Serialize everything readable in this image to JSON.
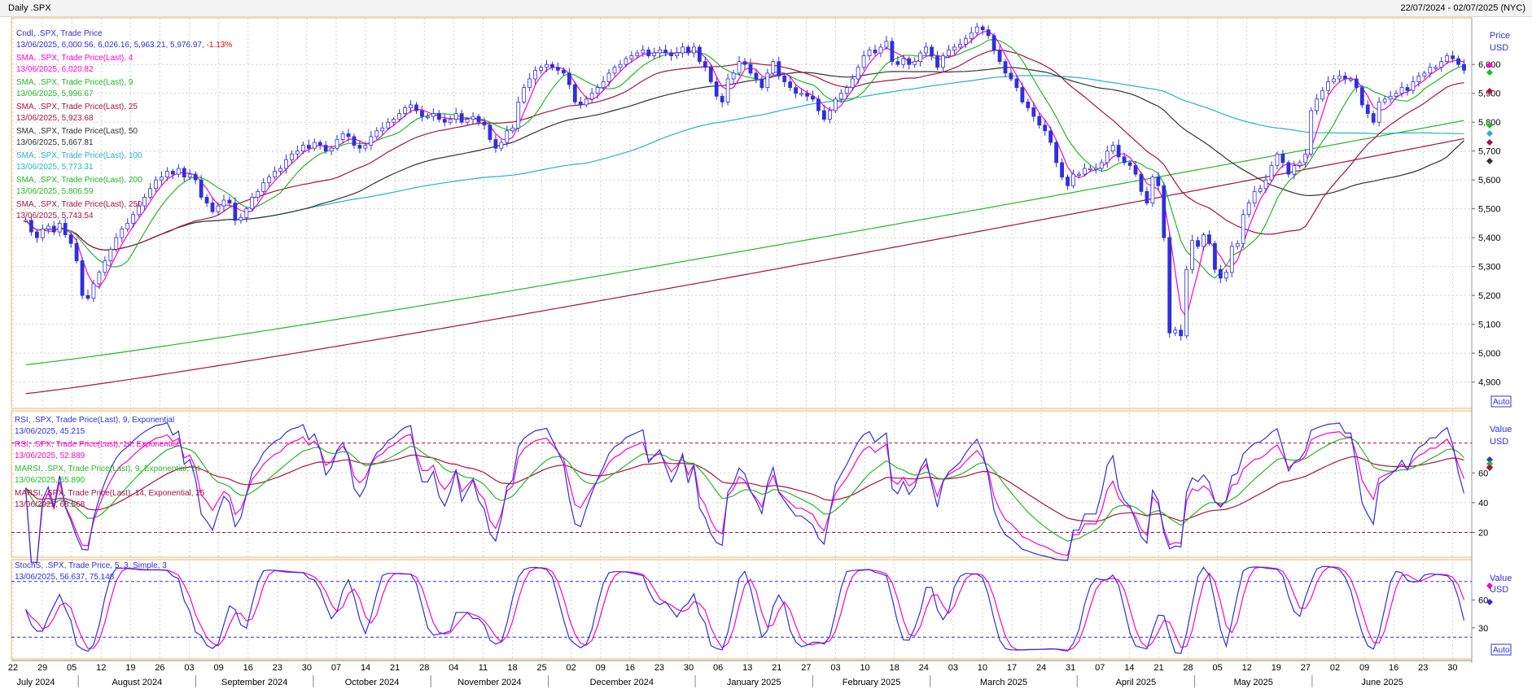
{
  "window": {
    "title": "Daily .SPX",
    "date_range": "22/07/2024 - 02/07/2025 (NYC)"
  },
  "chart_data": [
    {
      "type": "candlestick",
      "panel": "price",
      "legend": [
        {
          "label": "Cndl, .SPX, Trade Price",
          "value": "13/06/2025, 6,000.56, 6,026.16, 5,963.21, 5,976.97, ",
          "change": "-1.13%",
          "color": "#2f2fe0"
        },
        {
          "label": "SMA, .SPX, Trade Price(Last),  4",
          "value": "13/06/2025, 6,020.82",
          "color": "#ff00cc"
        },
        {
          "label": "SMA, .SPX, Trade Price(Last),  9",
          "value": "13/06/2025, 5,996.67",
          "color": "#22bb22"
        },
        {
          "label": "SMA, .SPX, Trade Price(Last),  25",
          "value": "13/06/2025, 5,923.68",
          "color": "#aa1144"
        },
        {
          "label": "SMA, .SPX, Trade Price(Last),  50",
          "value": "13/06/2025, 5,667.81",
          "color": "#333333"
        },
        {
          "label": "SMA, .SPX, Trade Price(Last),  100",
          "value": "13/06/2025, 5,773.31",
          "color": "#22b5c8"
        },
        {
          "label": "SMA, .SPX, Trade Price(Last),  200",
          "value": "13/06/2025, 5,806.59",
          "color": "#22bb22"
        },
        {
          "label": "SMA, .SPX, Trade Price(Last),  250",
          "value": "13/06/2025, 5,743.54",
          "color": "#aa1144"
        }
      ],
      "axis_label": "Price",
      "axis_unit": "USD",
      "yticks": [
        6000,
        5900,
        5800,
        5700,
        5600,
        5500,
        5400,
        5300,
        5200,
        5100,
        5000,
        4900
      ],
      "ytick_labels": [
        "6,000",
        "5,900",
        "5,800",
        "5,700",
        "5,600",
        "5,500",
        "5,400",
        "5,300",
        "5,200",
        "5,100",
        "5,000",
        "4,900"
      ],
      "ylim": [
        4820,
        6150
      ],
      "auto_label": "Auto",
      "closes": [
        5460,
        5420,
        5400,
        5430,
        5440,
        5420,
        5450,
        5410,
        5380,
        5320,
        5200,
        5190,
        5240,
        5280,
        5320,
        5360,
        5400,
        5430,
        5450,
        5480,
        5510,
        5540,
        5570,
        5600,
        5610,
        5630,
        5620,
        5640,
        5610,
        5620,
        5600,
        5540,
        5520,
        5490,
        5510,
        5530,
        5520,
        5460,
        5470,
        5500,
        5540,
        5560,
        5590,
        5610,
        5630,
        5640,
        5670,
        5690,
        5700,
        5720,
        5710,
        5730,
        5720,
        5700,
        5710,
        5740,
        5760,
        5750,
        5720,
        5710,
        5720,
        5750,
        5770,
        5780,
        5800,
        5810,
        5830,
        5850,
        5860,
        5840,
        5820,
        5820,
        5830,
        5810,
        5800,
        5810,
        5830,
        5800,
        5810,
        5820,
        5800,
        5790,
        5740,
        5710,
        5730,
        5770,
        5780,
        5870,
        5920,
        5950,
        5980,
        5990,
        6000,
        5990,
        5980,
        5970,
        5930,
        5870,
        5860,
        5880,
        5900,
        5920,
        5940,
        5970,
        5990,
        6000,
        6020,
        6030,
        6040,
        6050,
        6030,
        6040,
        6050,
        6040,
        6030,
        6040,
        6060,
        6040,
        6060,
        6010,
        5990,
        5940,
        5890,
        5870,
        5950,
        5970,
        6010,
        6000,
        5970,
        5950,
        5920,
        5970,
        6010,
        5960,
        5940,
        5920,
        5900,
        5900,
        5890,
        5880,
        5840,
        5810,
        5840,
        5880,
        5900,
        5920,
        5950,
        5990,
        6030,
        6050,
        6040,
        6060,
        6080,
        6010,
        6000,
        6020,
        6000,
        6010,
        6040,
        6060,
        6030,
        5990,
        6030,
        6050,
        6060,
        6070,
        6090,
        6110,
        6130,
        6120,
        6100,
        6050,
        6010,
        5970,
        5950,
        5920,
        5870,
        5850,
        5820,
        5790,
        5770,
        5730,
        5660,
        5610,
        5580,
        5620,
        5620,
        5640,
        5640,
        5640,
        5660,
        5700,
        5720,
        5680,
        5660,
        5650,
        5620,
        5560,
        5520,
        5610,
        5580,
        5400,
        5070,
        5080,
        5060,
        5290,
        5390,
        5370,
        5410,
        5380,
        5290,
        5260,
        5280,
        5370,
        5380,
        5480,
        5520,
        5560,
        5570,
        5600,
        5650,
        5690,
        5660,
        5620,
        5650,
        5660,
        5690,
        5840,
        5880,
        5910,
        5940,
        5950,
        5960,
        5950,
        5950,
        5920,
        5860,
        5830,
        5800,
        5870,
        5880,
        5890,
        5900,
        5920,
        5910,
        5940,
        5960,
        5970,
        5990,
        5990,
        6010,
        6030,
        6020,
        6000,
        5980
      ]
    },
    {
      "type": "line",
      "panel": "rsi",
      "legend": [
        {
          "label": "RSI, .SPX, Trade Price(Last),  9, Exponential",
          "value": "13/06/2025, 45.215",
          "color": "#2f2fe0"
        },
        {
          "label": "RSI, .SPX, Trade Price(Last),  14, Exponential",
          "value": "13/06/2025, 52.889",
          "color": "#ff00cc"
        },
        {
          "label": "MARSI, .SPX, Trade Price(Last),  9, Exponential, 14",
          "value": "13/06/2025, 65.890",
          "color": "#22bb22"
        },
        {
          "label": "MARSI, .SPX, Trade Price(Last),  14, Exponential, 25",
          "value": "13/06/2025, 68.568",
          "color": "#aa1144"
        }
      ],
      "axis_label": "Value",
      "axis_unit": "USD",
      "yticks": [
        60,
        40,
        20
      ],
      "ytick_labels": [
        "60",
        "40",
        "20"
      ],
      "ylim": [
        5,
        100
      ],
      "levels": [
        80,
        20
      ]
    },
    {
      "type": "line",
      "panel": "stochastic",
      "legend": [
        {
          "label": "StochS, .SPX, Trade Price,  5, 3, Simple, 3",
          "value": "13/06/2025, 56.637, 75.148",
          "color": "#2f2fe0"
        }
      ],
      "axis_label": "Value",
      "axis_unit": "USD",
      "yticks": [
        60,
        30
      ],
      "ytick_labels": [
        "60",
        "30"
      ],
      "ylim": [
        0,
        100
      ],
      "levels": [
        80,
        20
      ],
      "auto_label": "Auto"
    }
  ],
  "x_axis": {
    "day_ticks": [
      "22",
      "29",
      "05",
      "12",
      "19",
      "26",
      "03",
      "09",
      "16",
      "23",
      "30",
      "07",
      "14",
      "21",
      "28",
      "04",
      "11",
      "18",
      "25",
      "02",
      "09",
      "16",
      "23",
      "30",
      "06",
      "13",
      "21",
      "27",
      "03",
      "10",
      "18",
      "24",
      "03",
      "10",
      "17",
      "24",
      "31",
      "07",
      "14",
      "21",
      "28",
      "05",
      "12",
      "19",
      "27",
      "02",
      "09",
      "16",
      "23",
      "30"
    ],
    "months": [
      "July 2024",
      "August 2024",
      "September 2024",
      "October 2024",
      "November 2024",
      "December 2024",
      "January 2025",
      "February 2025",
      "March 2025",
      "April 2025",
      "May 2025",
      "June 2025"
    ]
  }
}
